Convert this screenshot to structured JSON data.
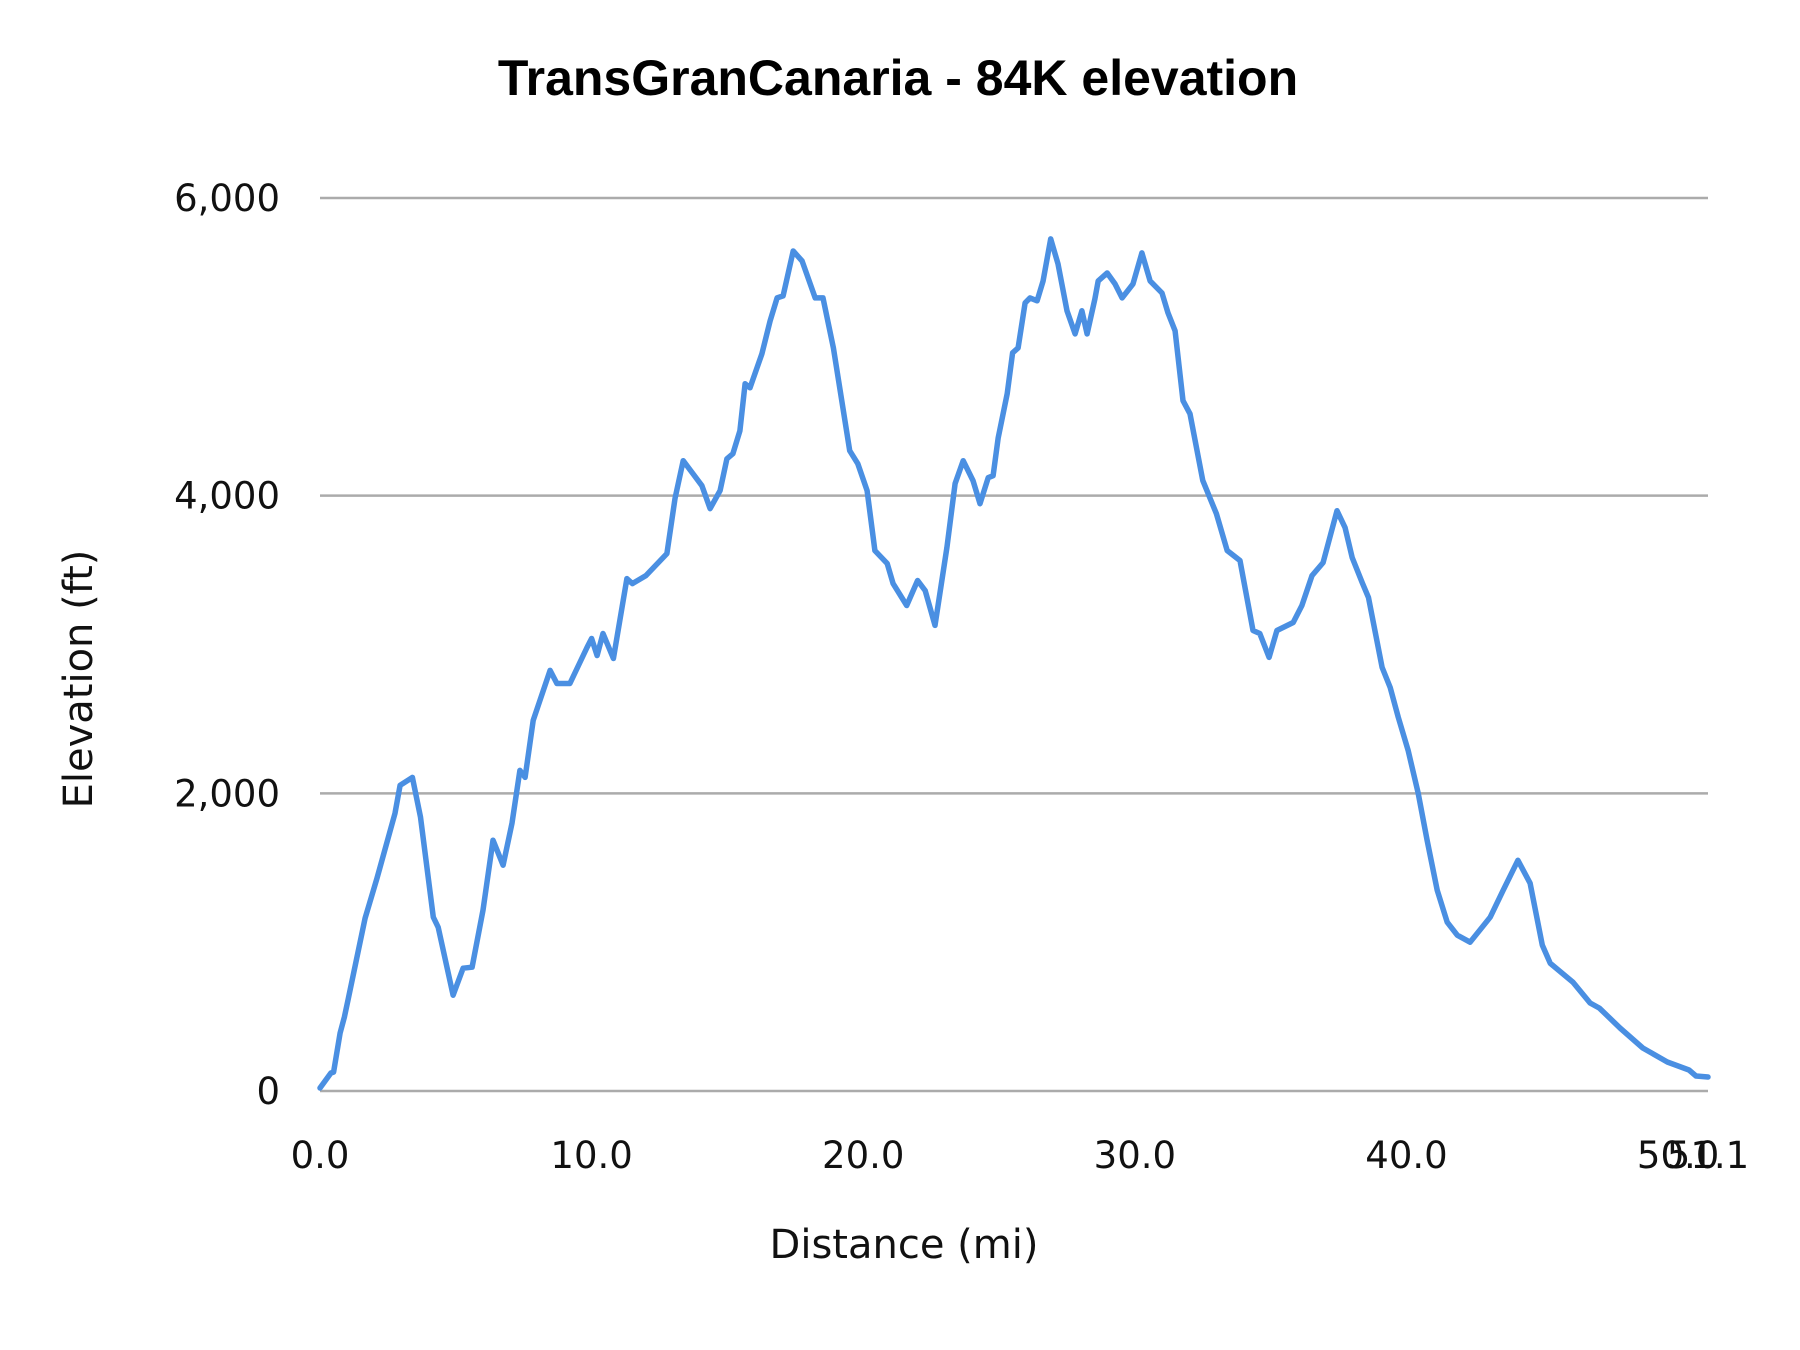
{
  "chart_data": {
    "type": "line",
    "title": "TransGranCanaria - 84K elevation",
    "xlabel": "Distance (mi)",
    "ylabel": "Elevation (ft)",
    "xlim": [
      0,
      51.1
    ],
    "ylim": [
      0,
      6000
    ],
    "x_ticks": [
      0.0,
      10.0,
      20.0,
      30.0,
      40.0,
      50.0,
      51.1
    ],
    "x_tick_labels": [
      "0.0",
      "10.0",
      "20.0",
      "30.0",
      "40.0",
      "50.0",
      "51.1"
    ],
    "y_ticks": [
      0,
      2000,
      4000,
      6000
    ],
    "y_tick_labels": [
      "0",
      "2,000",
      "4,000",
      "6,000"
    ],
    "grid": "horizontal",
    "legend": "none",
    "series": [
      {
        "name": "Elevation",
        "color": "#4a8fe2",
        "x": [
          0,
          0.4,
          0.5,
          0.74,
          0.9,
          1.03,
          1.66,
          2.1,
          2.76,
          2.95,
          3.4,
          3.7,
          4.17,
          4.35,
          4.9,
          5.27,
          5.6,
          6.0,
          6.37,
          6.74,
          7.07,
          7.36,
          7.55,
          7.85,
          8.47,
          8.72,
          9.2,
          9.83,
          10.0,
          10.2,
          10.42,
          10.8,
          11.3,
          11.5,
          12.0,
          12.77,
          13.07,
          13.37,
          13.73,
          14.06,
          14.36,
          14.73,
          14.98,
          15.2,
          15.46,
          15.65,
          15.83,
          16.27,
          16.57,
          16.83,
          17.05,
          17.42,
          17.75,
          18.23,
          18.52,
          18.9,
          19.5,
          19.8,
          20.14,
          20.43,
          20.88,
          21.1,
          21.6,
          22.0,
          22.28,
          22.64,
          23.08,
          23.38,
          23.68,
          24.04,
          24.3,
          24.6,
          24.78,
          24.97,
          25.3,
          25.5,
          25.7,
          25.96,
          26.14,
          26.4,
          26.62,
          26.9,
          27.17,
          27.5,
          27.8,
          28.05,
          28.24,
          28.53,
          28.65,
          28.98,
          29.27,
          29.53,
          29.93,
          30.26,
          30.56,
          31.0,
          31.22,
          31.48,
          31.77,
          32.03,
          32.5,
          33.0,
          33.4,
          33.87,
          34.35,
          34.6,
          34.94,
          35.23,
          35.83,
          36.15,
          36.52,
          36.93,
          37.44,
          37.74,
          38.0,
          38.37,
          38.6,
          39.1,
          39.4,
          39.7,
          40.06,
          40.43,
          40.76,
          41.13,
          41.5,
          41.87,
          42.34,
          43.08,
          43.56,
          44.1,
          44.55,
          45.0,
          45.29,
          46.13,
          46.76,
          47.1,
          47.86,
          48.7,
          49.6,
          50.4,
          50.66,
          51.1
        ],
        "y": [
          20,
          121,
          127,
          389,
          497,
          611,
          1161,
          1430,
          1866,
          2054,
          2107,
          1840,
          1168,
          1100,
          644,
          825,
          832,
          1215,
          1685,
          1517,
          1799,
          2154,
          2107,
          2490,
          2826,
          2738,
          2738,
          2980,
          3040,
          2926,
          3074,
          2906,
          3443,
          3409,
          3463,
          3611,
          3980,
          4235,
          4148,
          4067,
          3913,
          4034,
          4248,
          4282,
          4436,
          4752,
          4725,
          4953,
          5174,
          5329,
          5342,
          5644,
          5577,
          5329,
          5329,
          4993,
          4302,
          4215,
          4034,
          3631,
          3544,
          3409,
          3262,
          3430,
          3362,
          3128,
          3651,
          4081,
          4235,
          4101,
          3946,
          4121,
          4134,
          4389,
          4685,
          4960,
          4993,
          5295,
          5329,
          5309,
          5443,
          5725,
          5557,
          5242,
          5087,
          5242,
          5087,
          5322,
          5443,
          5496,
          5423,
          5329,
          5423,
          5631,
          5443,
          5362,
          5228,
          5107,
          4638,
          4550,
          4101,
          3879,
          3631,
          3564,
          3094,
          3074,
          2913,
          3094,
          3148,
          3262,
          3463,
          3550,
          3899,
          3785,
          3584,
          3416,
          3315,
          2846,
          2711,
          2510,
          2289,
          2000,
          1685,
          1349,
          1134,
          1047,
          1000,
          1168,
          1349,
          1550,
          1396,
          980,
          859,
          731,
          591,
          557,
          423,
          289,
          195,
          141,
          101,
          94
        ]
      }
    ]
  },
  "colors": {
    "series": "#4a8fe2",
    "grid": "#ababab",
    "text": "#111111",
    "background": "#ffffff"
  }
}
